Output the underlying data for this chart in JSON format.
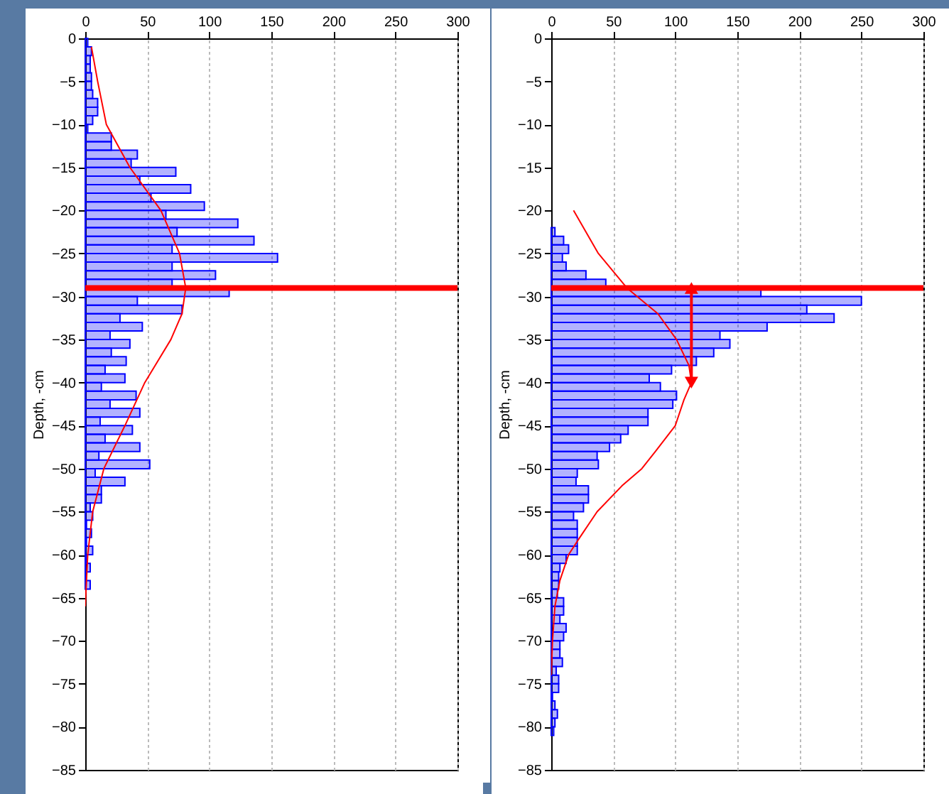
{
  "chart_data": [
    {
      "type": "histogram",
      "orientation": "horizontal",
      "ylabel": "Depth, -cm",
      "color": "#0000ff",
      "bins": [
        0,
        -1,
        -2,
        -3,
        -4,
        -5,
        -6,
        -7,
        -8,
        -9,
        -10,
        -11,
        -12,
        -13,
        -14,
        -15,
        -16,
        -17,
        -18,
        -19,
        -20,
        -21,
        -22,
        -23,
        -24,
        -25,
        -26,
        -27,
        -28,
        -29,
        -30,
        -31,
        -32,
        -33,
        -34,
        -35,
        -36,
        -37,
        -38,
        -39,
        -40,
        -41,
        -42,
        -43,
        -44,
        -45,
        -46,
        -47,
        -48,
        -49,
        -50,
        -51,
        -52,
        -53,
        -54,
        -55,
        -56,
        -57,
        -58,
        -59,
        -60,
        -61,
        -62,
        -63,
        -64
      ],
      "values": [
        2,
        5,
        4,
        4,
        5,
        5,
        6,
        10,
        10,
        6,
        2,
        21,
        21,
        42,
        37,
        73,
        44,
        85,
        53,
        96,
        65,
        123,
        74,
        136,
        70,
        155,
        70,
        105,
        70,
        116,
        42,
        78,
        28,
        46,
        20,
        36,
        21,
        33,
        16,
        32,
        13,
        41,
        20,
        44,
        12,
        38,
        16,
        44,
        11,
        52,
        8,
        32,
        13,
        13,
        4,
        6,
        1,
        5,
        1,
        6,
        1,
        4,
        0,
        4
      ],
      "series": [
        {
          "type": "line",
          "color": "#ff0000",
          "x": [
            -1,
            -5,
            -10,
            -15,
            -20,
            -25,
            -29,
            -32,
            -35,
            -40,
            -45,
            -50,
            -55,
            -60,
            -66
          ],
          "values": [
            5,
            10,
            17,
            36,
            61,
            76,
            81,
            78,
            69,
            48,
            32,
            15,
            6,
            2,
            0
          ]
        }
      ],
      "xlim": [
        0,
        300
      ],
      "xticks": [
        0,
        50,
        100,
        150,
        200,
        250,
        300
      ],
      "ylim": [
        -85,
        0
      ],
      "yticks": [
        0,
        -5,
        -10,
        -15,
        -20,
        -25,
        -30,
        -35,
        -40,
        -45,
        -50,
        -55,
        -60,
        -65,
        -70,
        -75,
        -80,
        -85
      ],
      "grid": "x",
      "ref_lines": [
        {
          "axis": "y",
          "value": -29,
          "color": "#ff0000"
        }
      ]
    },
    {
      "type": "histogram",
      "orientation": "horizontal",
      "ylabel": "Depth, -cm",
      "color": "#0000ff",
      "bins": [
        -22,
        -23,
        -24,
        -25,
        -26,
        -27,
        -28,
        -29,
        -30,
        -31,
        -32,
        -33,
        -34,
        -35,
        -36,
        -37,
        -38,
        -39,
        -40,
        -41,
        -42,
        -43,
        -44,
        -45,
        -46,
        -47,
        -48,
        -49,
        -50,
        -51,
        -52,
        -53,
        -54,
        -55,
        -56,
        -57,
        -58,
        -59,
        -60,
        -61,
        -62,
        -63,
        -64,
        -65,
        -66,
        -67,
        -68,
        -69,
        -70,
        -71,
        -72,
        -73,
        -74,
        -75,
        -76,
        -77,
        -78,
        -79,
        -80,
        -81
      ],
      "values": [
        3,
        10,
        14,
        9,
        12,
        28,
        44,
        169,
        250,
        206,
        228,
        174,
        136,
        144,
        131,
        117,
        97,
        79,
        88,
        101,
        98,
        78,
        78,
        62,
        56,
        47,
        37,
        38,
        21,
        20,
        30,
        30,
        26,
        18,
        21,
        21,
        21,
        21,
        12,
        7,
        6,
        6,
        5,
        10,
        10,
        7,
        12,
        10,
        7,
        7,
        9,
        4,
        6,
        6,
        1,
        3,
        5,
        3,
        2
      ],
      "series": [
        {
          "type": "line",
          "color": "#ff0000",
          "x": [
            -20,
            -25,
            -29,
            -32,
            -35,
            -38,
            -40,
            -42,
            -45,
            -48,
            -50,
            -52,
            -55,
            -58,
            -60,
            -63,
            -66,
            -70,
            -74
          ],
          "values": [
            18,
            38,
            61,
            86,
            101,
            111,
            113,
            107,
            100,
            84,
            73,
            57,
            37,
            23,
            14,
            7,
            3,
            1,
            0
          ]
        }
      ],
      "xlim": [
        0,
        300
      ],
      "xticks": [
        0,
        50,
        100,
        150,
        200,
        250,
        300
      ],
      "ylim": [
        -85,
        0
      ],
      "yticks": [
        0,
        -5,
        -10,
        -15,
        -20,
        -25,
        -30,
        -35,
        -40,
        -45,
        -50,
        -55,
        -60,
        -65,
        -70,
        -75,
        -80,
        -85
      ],
      "grid": "x",
      "ref_lines": [
        {
          "axis": "y",
          "value": -29,
          "color": "#ff0000"
        }
      ]
    }
  ]
}
